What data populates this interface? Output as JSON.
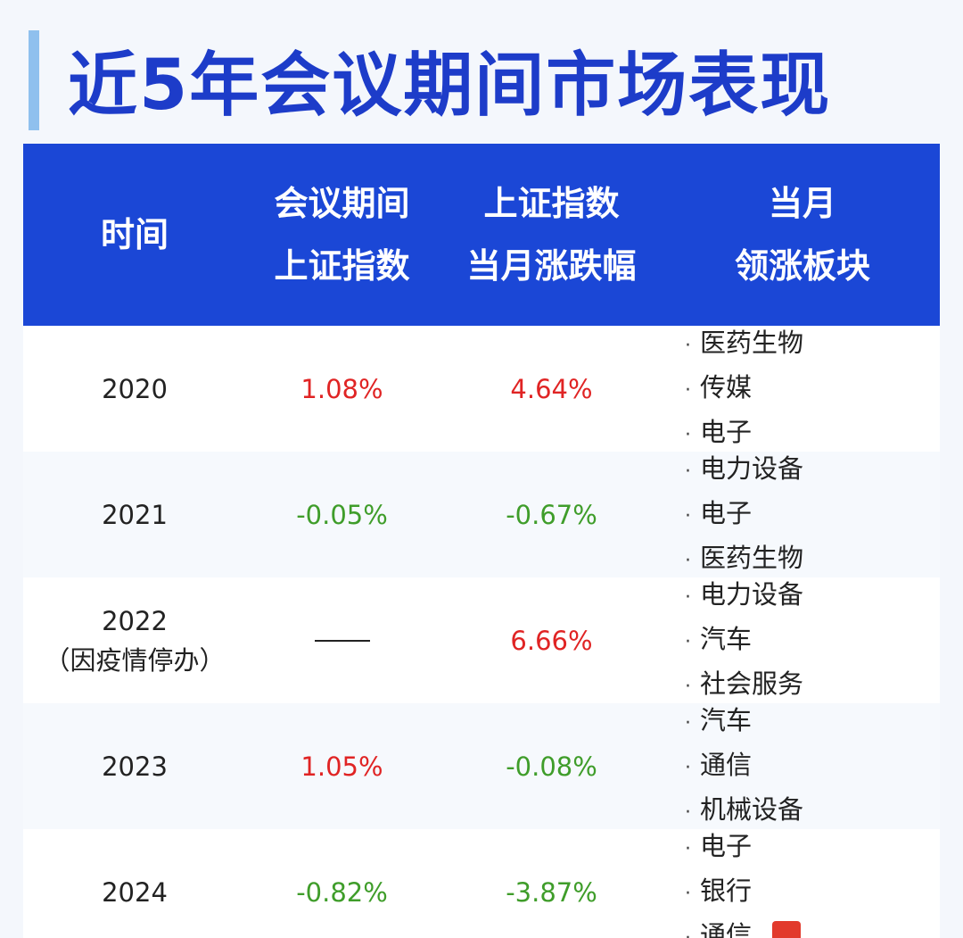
{
  "title": "近5年会议期间市场表现",
  "headers": [
    [
      "时间"
    ],
    [
      "会议期间",
      "上证指数"
    ],
    [
      "上证指数",
      "当月涨跌幅"
    ],
    [
      "当月",
      "领涨板块"
    ]
  ],
  "rows": [
    {
      "year": "2020",
      "year_note": "",
      "meeting_change": "1.08%",
      "meeting_color": "red",
      "month_change": "4.64%",
      "month_color": "red",
      "sectors": [
        "医药生物",
        "传媒",
        "电子"
      ]
    },
    {
      "year": "2021",
      "year_note": "",
      "meeting_change": "-0.05%",
      "meeting_color": "green",
      "month_change": "-0.67%",
      "month_color": "green",
      "sectors": [
        "电力设备",
        "电子",
        "医药生物"
      ]
    },
    {
      "year": "2022",
      "year_note": "（因疫情停办）",
      "meeting_change": "",
      "meeting_color": "dash",
      "month_change": "6.66%",
      "month_color": "red",
      "sectors": [
        "电力设备",
        "汽车",
        "社会服务"
      ]
    },
    {
      "year": "2023",
      "year_note": "",
      "meeting_change": "1.05%",
      "meeting_color": "red",
      "month_change": "-0.08%",
      "month_color": "green",
      "sectors": [
        "汽车",
        "通信",
        "机械设备"
      ]
    },
    {
      "year": "2024",
      "year_note": "",
      "meeting_change": "-0.82%",
      "meeting_color": "green",
      "month_change": "-3.87%",
      "month_color": "green",
      "sectors": [
        "电子",
        "银行",
        "通信"
      ]
    }
  ],
  "bullet": "·",
  "colors": {
    "title": "#1d3cc9",
    "header_bg": "#1b47d6",
    "up": "#e02424",
    "down": "#3f9d2a"
  }
}
